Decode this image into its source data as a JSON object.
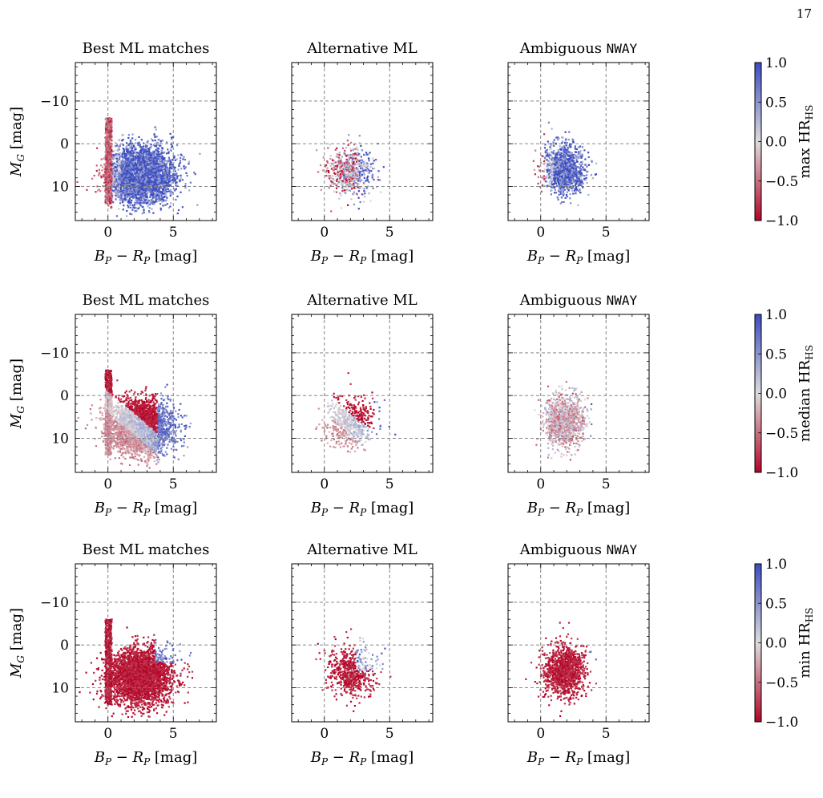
{
  "page_number": "17",
  "colors": {
    "cmap_low": "#b40426",
    "cmap_mid": "#dddddd",
    "cmap_high": "#3b4cc0",
    "grid": "#777777"
  },
  "chart_data": {
    "type": "scatter",
    "colormap": "coolwarm",
    "grid": true,
    "x_axis": {
      "label": "B_P − R_P [mag]",
      "label_parts": {
        "b": "B",
        "b_sub": "P",
        "op": " − ",
        "r": "R",
        "r_sub": "P",
        "unit": " [mag]"
      },
      "ticks": [
        0,
        5
      ],
      "lim": [
        -2.5,
        8.3
      ]
    },
    "y_axis": {
      "label": "M_G [mag]",
      "label_parts": {
        "m": "M",
        "m_sub": "G",
        "unit": " [mag]"
      },
      "ticks": [
        -10,
        0,
        10
      ],
      "tick_labels": [
        "−10",
        "0",
        "10"
      ],
      "lim": [
        18,
        -19
      ],
      "inverted": true
    },
    "columns": [
      {
        "title": "Best ML matches",
        "title_mono": ""
      },
      {
        "title": "Alternative ML",
        "title_mono": ""
      },
      {
        "title": "Ambiguous ",
        "title_mono": "NWAY"
      }
    ],
    "rows": [
      {
        "statistic": "max",
        "colorbar_label": "max HR_HS",
        "colorbar_prefix": "max ",
        "colorbar_main": "HR",
        "colorbar_sub": "HS"
      },
      {
        "statistic": "median",
        "colorbar_label": "median HR_HS",
        "colorbar_prefix": "median ",
        "colorbar_main": "HR",
        "colorbar_sub": "HS"
      },
      {
        "statistic": "min",
        "colorbar_label": "min HR_HS",
        "colorbar_prefix": "min ",
        "colorbar_main": "HR",
        "colorbar_sub": "HS"
      }
    ],
    "colorbar": {
      "range": [
        -1.0,
        1.0
      ],
      "ticks": [
        1.0,
        0.5,
        0.0,
        -0.5,
        -1.0
      ],
      "tick_labels": [
        "1.0",
        "0.5",
        "0.0",
        "−0.5",
        "−1.0"
      ]
    },
    "distributions": [
      {
        "sample": "Best ML matches",
        "color_mean": [
          2.5,
          7.5
        ],
        "color_std": [
          1.6,
          4.2
        ],
        "approx_points": 4500,
        "dense_core": [
          2.5,
          7.0
        ]
      },
      {
        "sample": "Alternative ML",
        "color_mean": [
          2.0,
          6.5
        ],
        "color_std": [
          1.2,
          3.8
        ],
        "approx_points": 700
      },
      {
        "sample": "Ambiguous NWAY",
        "color_mean": [
          1.8,
          6.0
        ],
        "color_std": [
          1.0,
          4.0
        ],
        "approx_points": 1400,
        "dense_core": [
          1.8,
          6.5
        ]
      }
    ]
  }
}
